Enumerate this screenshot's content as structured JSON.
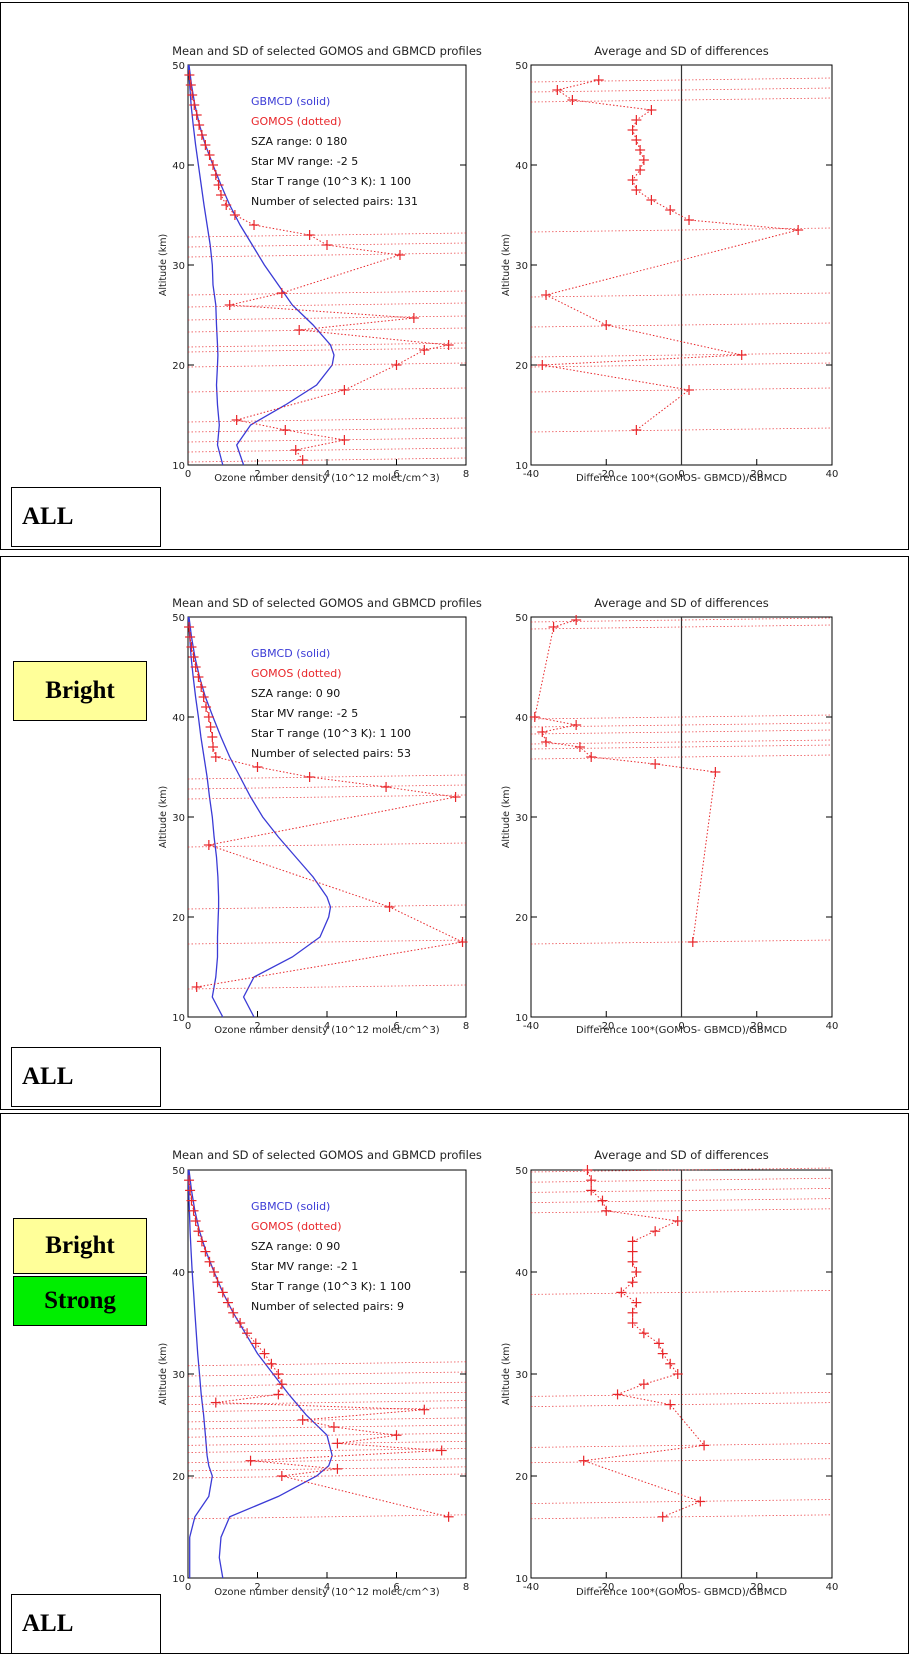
{
  "colors": {
    "gbmcd": "#3b3bd6",
    "gomos": "#e8262a",
    "axis": "#000000",
    "bright_label_bg": "#ffff99",
    "strong_label_bg": "#00ee00"
  },
  "panels": [
    {
      "labels": [
        "ALL"
      ],
      "left_title": "Mean and SD of selected GOMOS and GBMCD profiles",
      "right_title": "Average and SD of differences",
      "legend": {
        "gbmcd": "GBMCD  (solid)",
        "gomos": "GOMOS  (dotted)",
        "sza": "SZA range:      0   180",
        "mv": "Star MV range:    -2    5",
        "t": "Star T range (10^3 K):  1  100",
        "n": "Number of selected pairs:  131"
      }
    },
    {
      "labels": [
        "Bright",
        "ALL"
      ],
      "left_title": "Mean and SD of selected GOMOS and GBMCD profiles",
      "right_title": "Average and SD of differences",
      "legend": {
        "gbmcd": "GBMCD  (solid)",
        "gomos": "GOMOS  (dotted)",
        "sza": "SZA range:      0    90",
        "mv": "Star MV range:    -2    5",
        "t": "Star T range (10^3 K):  1  100",
        "n": "Number of selected pairs:  53"
      }
    },
    {
      "labels": [
        "Bright",
        "Strong",
        "ALL"
      ],
      "left_title": "Mean and SD of selected GOMOS and GBMCD profiles",
      "right_title": "Average and SD of differences",
      "legend": {
        "gbmcd": "GBMCD  (solid)",
        "gomos": "GOMOS  (dotted)",
        "sza": "SZA range:      0    90",
        "mv": "Star MV range:    -2    1",
        "t": "Star T range (10^3 K):  1  100",
        "n": "Number of selected pairs:  9"
      }
    }
  ],
  "chart_data": [
    {
      "type": "line",
      "title": "Mean and SD of selected GOMOS and GBMCD profiles",
      "xlabel": "Ozone number density (10^12 molec/cm^3)",
      "ylabel": "Altitude (km)",
      "xlim": [
        0,
        8
      ],
      "ylim": [
        10,
        50
      ],
      "xticks": [
        "0",
        "2",
        "4",
        "6",
        "8"
      ],
      "yticks": [
        "10",
        "20",
        "30",
        "40",
        "50"
      ],
      "series": [
        {
          "name": "GBMCD (solid)",
          "altitude": [
            10,
            12,
            14,
            16,
            18,
            20,
            21,
            22,
            24,
            26,
            28,
            30,
            32,
            34,
            36,
            38,
            40,
            42,
            44,
            46,
            48,
            50
          ],
          "mean": [
            1.6,
            1.4,
            1.8,
            2.8,
            3.7,
            4.15,
            4.2,
            4.1,
            3.6,
            3.0,
            2.6,
            2.2,
            1.85,
            1.5,
            1.2,
            0.95,
            0.72,
            0.5,
            0.33,
            0.2,
            0.1,
            0.03
          ],
          "sd_low": [
            1.0,
            0.85,
            0.9,
            0.85,
            0.82,
            0.85,
            0.86,
            0.85,
            0.82,
            0.8,
            0.72,
            0.7,
            0.64,
            0.55,
            0.46,
            0.38,
            0.3,
            0.22,
            0.15,
            0.09,
            0.05,
            0.01
          ]
        },
        {
          "name": "GOMOS (dotted)",
          "altitude": [
            10.5,
            11.5,
            12.5,
            13.5,
            14.5,
            17.5,
            20,
            21.5,
            22,
            23.5,
            24.7,
            26,
            27.2,
            31,
            32,
            33,
            34,
            35,
            36,
            37,
            38,
            39,
            40,
            41,
            42,
            43,
            44,
            45,
            46,
            47,
            48,
            49
          ],
          "mean": [
            3.3,
            3.1,
            4.5,
            2.8,
            1.4,
            4.5,
            6.0,
            6.8,
            7.5,
            3.2,
            6.5,
            1.2,
            2.7,
            6.1,
            4.0,
            3.5,
            1.9,
            1.35,
            1.1,
            0.95,
            0.88,
            0.8,
            0.72,
            0.62,
            0.5,
            0.4,
            0.32,
            0.25,
            0.18,
            0.12,
            0.08,
            0.04
          ]
        },
        {
          "name": "Difference",
          "altitude": [
            13.5,
            17.5,
            20,
            21,
            24,
            27,
            33.5,
            34.5,
            35.5,
            36.5,
            37.5,
            38.5,
            39.5,
            40.5,
            41.5,
            42.5,
            43.5,
            44.5,
            45.5,
            46.5,
            47.5,
            48.5
          ],
          "value": [
            -12,
            2,
            -37,
            16,
            -20,
            -36,
            31,
            2,
            -3,
            -8,
            -12,
            -13,
            -11,
            -10,
            -11,
            -12,
            -13,
            -12,
            -8,
            -29,
            -33,
            -22
          ]
        }
      ],
      "diff_xlabel": "Difference 100*(GOMOS- GBMCD)/GBMCD",
      "diff_title": "Average and SD of differences",
      "diff_xlim": [
        -40,
        40
      ],
      "diff_xticks": [
        "-40",
        "-20",
        "0",
        "20",
        "40"
      ]
    },
    {
      "type": "line",
      "title": "Mean and SD of selected GOMOS and GBMCD profiles",
      "xlabel": "Ozone number density (10^12 molec/cm^3)",
      "ylabel": "Altitude (km)",
      "xlim": [
        0,
        8
      ],
      "ylim": [
        10,
        50
      ],
      "xticks": [
        "0",
        "2",
        "4",
        "6",
        "8"
      ],
      "yticks": [
        "10",
        "20",
        "30",
        "40",
        "50"
      ],
      "series": [
        {
          "name": "GBMCD (solid)",
          "altitude": [
            10,
            12,
            14,
            16,
            18,
            20,
            21,
            22,
            24,
            26,
            28,
            30,
            32,
            34,
            36,
            38,
            40,
            42,
            44,
            46,
            48,
            50
          ],
          "mean": [
            1.9,
            1.6,
            1.9,
            3.0,
            3.8,
            4.05,
            4.1,
            4.0,
            3.6,
            3.1,
            2.6,
            2.15,
            1.8,
            1.5,
            1.2,
            0.95,
            0.72,
            0.5,
            0.33,
            0.2,
            0.1,
            0.03
          ],
          "sd_low": [
            1.0,
            0.7,
            0.8,
            0.85,
            0.85,
            0.87,
            0.88,
            0.88,
            0.86,
            0.82,
            0.75,
            0.7,
            0.62,
            0.55,
            0.46,
            0.37,
            0.3,
            0.22,
            0.15,
            0.09,
            0.05,
            0.01
          ]
        },
        {
          "name": "GOMOS (dotted)",
          "altitude": [
            13,
            17.5,
            21,
            27.2,
            32,
            33,
            34,
            35,
            36,
            37,
            38,
            39,
            40,
            41,
            42,
            43,
            44,
            45,
            46,
            47,
            48,
            49
          ],
          "mean": [
            0.25,
            7.9,
            5.8,
            0.6,
            7.7,
            5.7,
            3.5,
            2.0,
            0.8,
            0.72,
            0.7,
            0.65,
            0.6,
            0.52,
            0.45,
            0.38,
            0.3,
            0.22,
            0.16,
            0.1,
            0.06,
            0.03
          ]
        },
        {
          "name": "Difference",
          "altitude": [
            17.5,
            34.5,
            35.3,
            36,
            37,
            37.5,
            38.5,
            39.2,
            40,
            49,
            49.7
          ],
          "value": [
            3,
            9,
            -7,
            -24,
            -27,
            -36,
            -37,
            -28,
            -39,
            -34,
            -28
          ]
        }
      ],
      "diff_xlabel": "Difference 100*(GOMOS- GBMCD)/GBMCD",
      "diff_title": "Average and SD of differences",
      "diff_xlim": [
        -40,
        40
      ],
      "diff_xticks": [
        "-40",
        "-20",
        "0",
        "20",
        "40"
      ]
    },
    {
      "type": "line",
      "title": "Mean and SD of selected GOMOS and GBMCD profiles",
      "xlabel": "Ozone number density (10^12 molec/cm^3)",
      "ylabel": "Altitude (km)",
      "xlim": [
        0,
        8
      ],
      "ylim": [
        10,
        50
      ],
      "xticks": [
        "0",
        "2",
        "4",
        "6",
        "8"
      ],
      "yticks": [
        "10",
        "20",
        "30",
        "40",
        "50"
      ],
      "series": [
        {
          "name": "GBMCD (solid)",
          "altitude": [
            10,
            12,
            14,
            16,
            18,
            20,
            21,
            22,
            24,
            26,
            28,
            30,
            32,
            34,
            36,
            38,
            40,
            42,
            44,
            46,
            48,
            50
          ],
          "mean": [
            1.0,
            0.9,
            0.95,
            1.2,
            2.6,
            3.7,
            4.05,
            4.15,
            4.0,
            3.4,
            2.9,
            2.45,
            2.0,
            1.65,
            1.3,
            1.0,
            0.75,
            0.52,
            0.33,
            0.2,
            0.1,
            0.03
          ],
          "sd_low": [
            0.05,
            0.05,
            0.05,
            0.2,
            0.6,
            0.7,
            0.6,
            0.55,
            0.5,
            0.45,
            0.38,
            0.33,
            0.28,
            0.24,
            0.2,
            0.16,
            0.12,
            0.09,
            0.06,
            0.04,
            0.02,
            0.01
          ]
        },
        {
          "name": "GOMOS (dotted)",
          "altitude": [
            16,
            20,
            20.7,
            21.5,
            22.5,
            23.2,
            24,
            24.8,
            25.5,
            26.5,
            27.2,
            28,
            29,
            30,
            31,
            32,
            33,
            34,
            35,
            36,
            37,
            38,
            39,
            40,
            41,
            42,
            43,
            44,
            45,
            46,
            47,
            48,
            49
          ],
          "mean": [
            7.5,
            2.7,
            4.3,
            1.8,
            7.3,
            4.3,
            6.0,
            4.2,
            3.3,
            6.8,
            0.8,
            2.6,
            2.7,
            2.6,
            2.4,
            2.2,
            1.95,
            1.7,
            1.5,
            1.3,
            1.15,
            1.0,
            0.85,
            0.75,
            0.62,
            0.5,
            0.4,
            0.3,
            0.22,
            0.16,
            0.1,
            0.06,
            0.03
          ]
        },
        {
          "name": "Difference",
          "altitude": [
            16,
            17.5,
            21.5,
            23,
            27,
            28,
            29,
            30,
            31,
            32,
            33,
            34,
            35,
            36,
            37,
            38,
            39,
            40,
            41,
            42,
            43,
            44,
            45,
            46,
            47,
            48,
            49,
            50
          ],
          "value": [
            -5,
            5,
            -26,
            6,
            -3,
            -17,
            -10,
            -1,
            -3,
            -5,
            -6,
            -10,
            -13,
            -13,
            -12,
            -16,
            -13,
            -12,
            -13,
            -13,
            -13,
            -7,
            -1,
            -20,
            -21,
            -24,
            -24,
            -25
          ]
        }
      ],
      "diff_xlabel": "Difference 100*(GOMOS- GBMCD)/GBMCD",
      "diff_title": "Average and SD of differences",
      "diff_xlim": [
        -40,
        40
      ],
      "diff_xticks": [
        "-40",
        "-20",
        "0",
        "20",
        "40"
      ]
    }
  ]
}
